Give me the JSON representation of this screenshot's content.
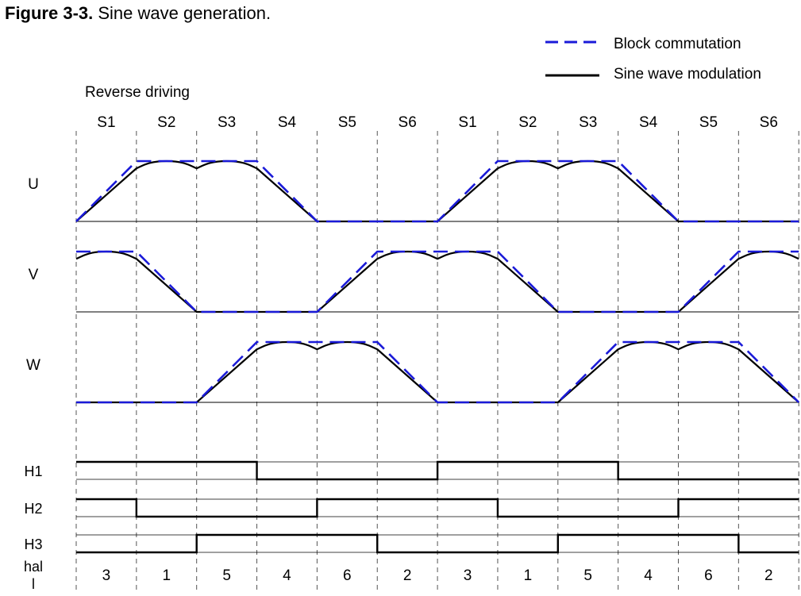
{
  "figure": {
    "label": "Figure 3-3.",
    "caption": "Sine wave generation."
  },
  "legend": {
    "block": "Block commutation",
    "sine": "Sine wave modulation"
  },
  "direction_label": "Reverse driving",
  "colors": {
    "block": "#1a1ad8",
    "sine": "#000000",
    "grid": "#555555"
  },
  "diagram": {
    "segments": [
      "S1",
      "S2",
      "S3",
      "S4",
      "S5",
      "S6",
      "S1",
      "S2",
      "S3",
      "S4",
      "S5",
      "S6"
    ],
    "phases": [
      {
        "name": "U",
        "block_levels": [
          0.5,
          1,
          1,
          0.5,
          0,
          0,
          0.5,
          1,
          1,
          0.5,
          0,
          0
        ]
      },
      {
        "name": "V",
        "block_levels": [
          1,
          0.5,
          0,
          0,
          0.5,
          1,
          1,
          0.5,
          0,
          0,
          0.5,
          1
        ]
      },
      {
        "name": "W",
        "block_levels": [
          0,
          0,
          0.5,
          1,
          1,
          0.5,
          0,
          0,
          0.5,
          1,
          1,
          0.5
        ]
      }
    ],
    "hall_signals": [
      {
        "name": "H1",
        "states": [
          1,
          1,
          1,
          0,
          0,
          0,
          1,
          1,
          1,
          0,
          0,
          0
        ]
      },
      {
        "name": "H2",
        "states": [
          1,
          0,
          0,
          0,
          1,
          1,
          1,
          0,
          0,
          0,
          1,
          1
        ]
      },
      {
        "name": "H3",
        "states": [
          0,
          0,
          1,
          1,
          1,
          0,
          0,
          0,
          1,
          1,
          1,
          0
        ]
      }
    ],
    "hall_label_line1": "hal",
    "hall_label_line2": "l",
    "hall_values": [
      "3",
      "1",
      "5",
      "4",
      "6",
      "2",
      "3",
      "1",
      "5",
      "4",
      "6",
      "2"
    ]
  }
}
